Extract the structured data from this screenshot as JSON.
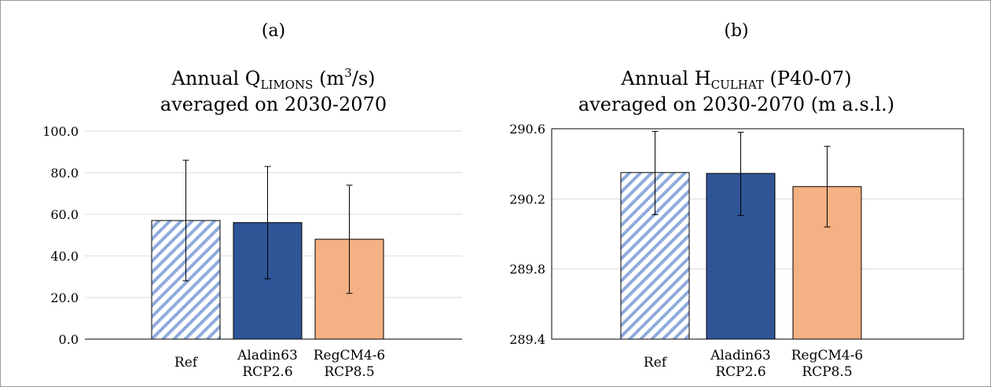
{
  "colors": {
    "ref_stripe": "#8faadc",
    "aladin": "#2f5597",
    "regcm": "#f4b183",
    "grid": "#d9d9d9",
    "axis": "#000000"
  },
  "chart_data": [
    {
      "type": "bar",
      "panel_label": "(a)",
      "title_prefix": "Annual Q",
      "title_subscript": "LIMONS",
      "title_suffix": " (m",
      "title_superscript": "3",
      "title_tail": "/s)",
      "title_line2": "averaged on 2030-2070",
      "categories": [
        [
          "Ref"
        ],
        [
          "Aladin63",
          "RCP2.6"
        ],
        [
          "RegCM4-6",
          "RCP8.5"
        ]
      ],
      "values": [
        57.0,
        56.0,
        48.0
      ],
      "error_low": [
        28.0,
        29.0,
        22.0
      ],
      "error_high": [
        86.0,
        83.0,
        74.0
      ],
      "ylim": [
        0,
        100
      ],
      "yticks": [
        0,
        20,
        40,
        60,
        80,
        100
      ],
      "ytick_labels": [
        "0.0",
        "20.0",
        "40.0",
        "60.0",
        "80.0",
        "100.0"
      ],
      "grid": true,
      "bar_styles": [
        "hatched",
        "aladin",
        "regcm"
      ]
    },
    {
      "type": "bar",
      "panel_label": "(b)",
      "title_prefix": "Annual H",
      "title_subscript": "CULHAT",
      "title_suffix": " (P40-07)",
      "title_superscript": "",
      "title_tail": "",
      "title_line2": "averaged on 2030-2070 (m a.s.l.)",
      "categories": [
        [
          "Ref"
        ],
        [
          "Aladin63",
          "RCP2.6"
        ],
        [
          "RegCM4-6",
          "RCP8.5"
        ]
      ],
      "values": [
        290.35,
        290.345,
        290.27
      ],
      "error_low": [
        290.11,
        290.105,
        290.04
      ],
      "error_high": [
        290.585,
        290.58,
        290.5
      ],
      "ylim": [
        289.4,
        290.6
      ],
      "yticks": [
        289.4,
        289.8,
        290.2,
        290.6
      ],
      "ytick_labels": [
        "289.4",
        "289.8",
        "290.2",
        "290.6"
      ],
      "grid": true,
      "bar_styles": [
        "hatched",
        "aladin",
        "regcm"
      ]
    }
  ]
}
